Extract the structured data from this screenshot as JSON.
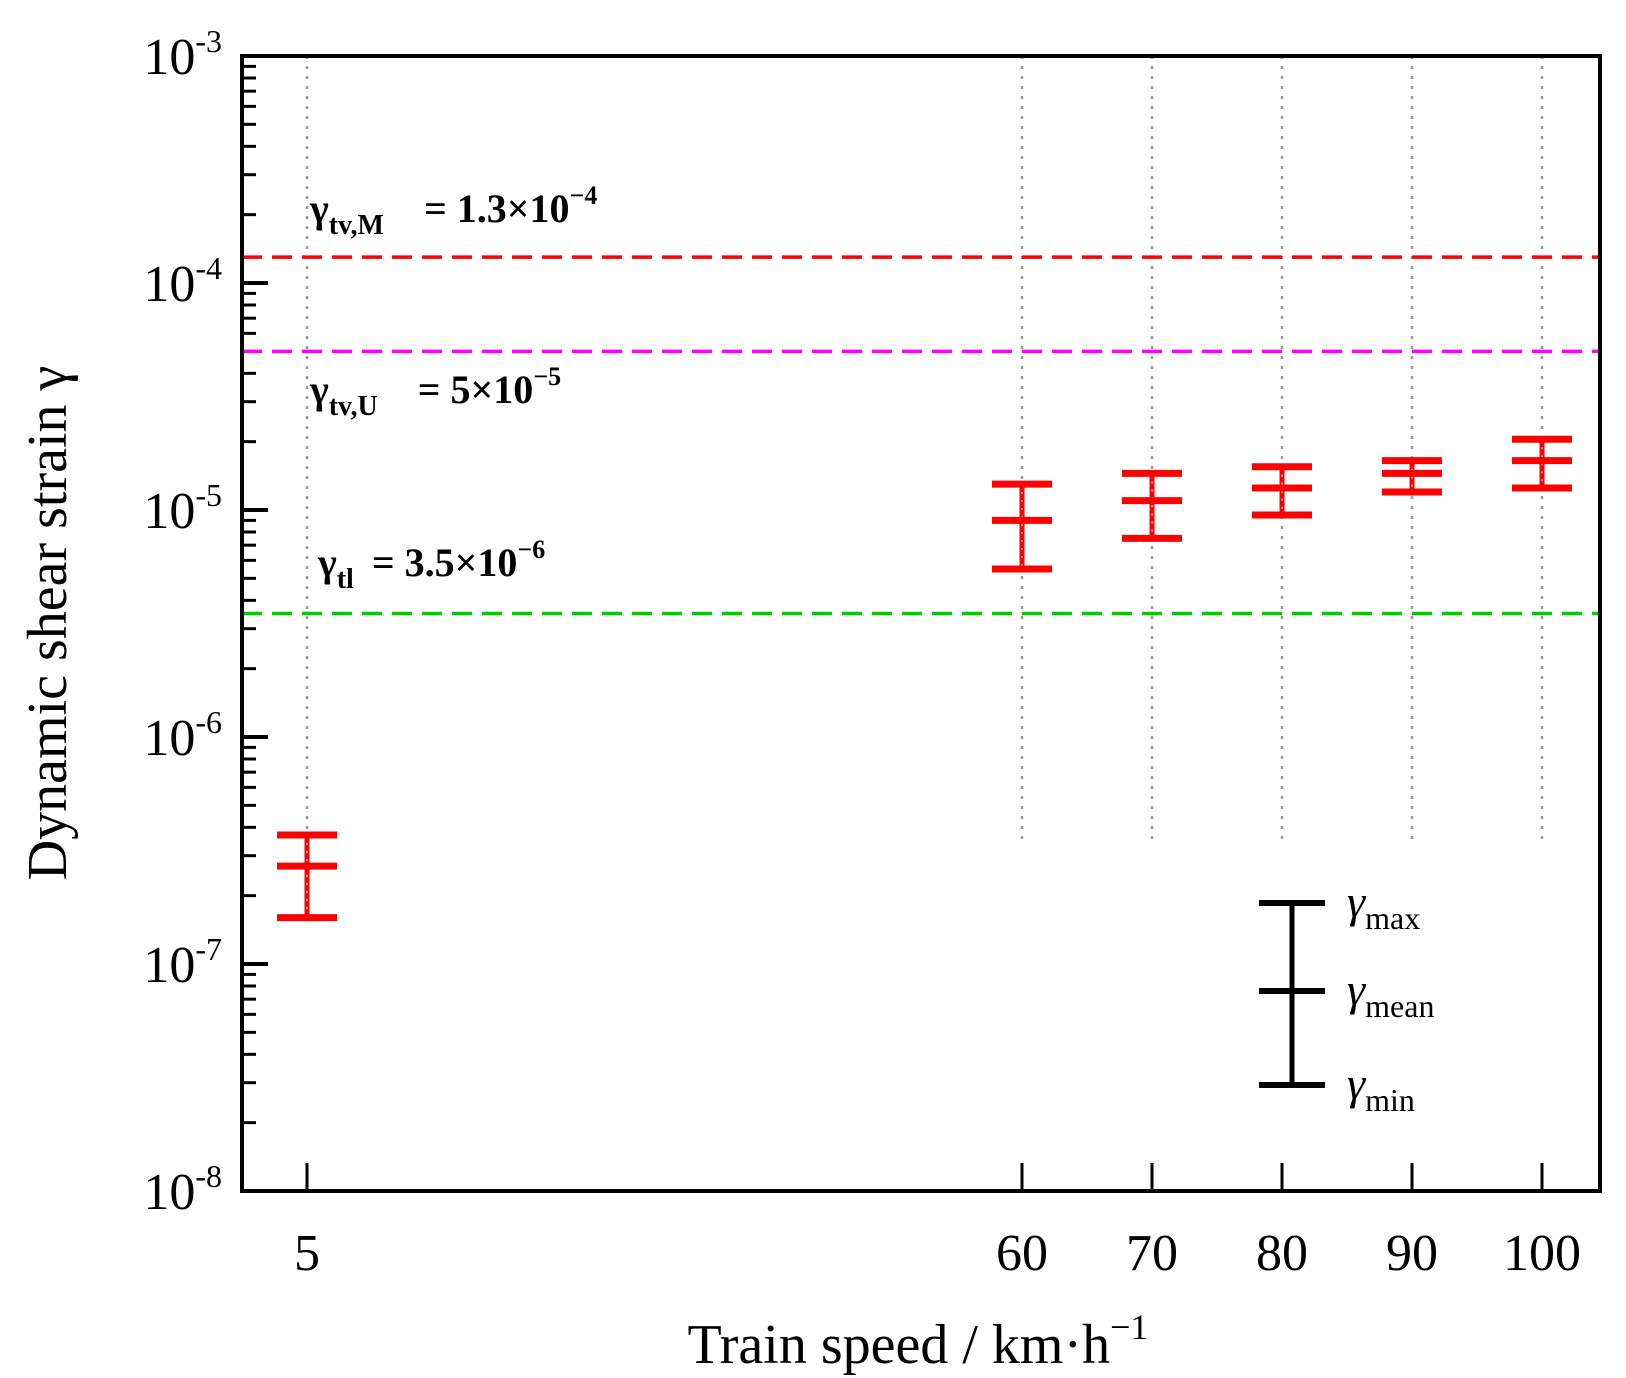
{
  "chart_data": {
    "type": "errorbar",
    "xlabel": "Train speed / km·h",
    "xlabel_sup": "−1",
    "ylabel": "Dynamic shear strain γ",
    "y_scale": "log",
    "ylim": [
      1e-08,
      0.001
    ],
    "y_ticks": [
      {
        "value": 0.001,
        "base": "10",
        "exp": "-3"
      },
      {
        "value": 0.0001,
        "base": "10",
        "exp": "-4"
      },
      {
        "value": 1e-05,
        "base": "10",
        "exp": "-5"
      },
      {
        "value": 1e-06,
        "base": "10",
        "exp": "-6"
      },
      {
        "value": 1e-07,
        "base": "10",
        "exp": "-7"
      },
      {
        "value": 1e-08,
        "base": "10",
        "exp": "-8"
      }
    ],
    "categories": [
      "5",
      "60",
      "70",
      "80",
      "90",
      "100"
    ],
    "series": [
      {
        "name": "Dynamic shear strain",
        "color": "#ff0000",
        "min": [
          1.6e-07,
          5.5e-06,
          7.5e-06,
          9.5e-06,
          1.2e-05,
          1.25e-05
        ],
        "mean": [
          2.7e-07,
          9e-06,
          1.1e-05,
          1.25e-05,
          1.45e-05,
          1.65e-05
        ],
        "max": [
          3.7e-07,
          1.3e-05,
          1.45e-05,
          1.55e-05,
          1.65e-05,
          2.05e-05
        ]
      }
    ],
    "reference_lines": [
      {
        "value": 0.00013,
        "color": "#ff0000",
        "sym": "γ",
        "sub": "tv,M",
        "text": " = 1.3×10",
        "sup": "−4"
      },
      {
        "value": 5e-05,
        "color": "#ff00ff",
        "sym": "γ",
        "sub": "tv,U",
        "text": " = 5×10",
        "sup": "−5"
      },
      {
        "value": 3.5e-06,
        "color": "#00cc00",
        "sym": "γ",
        "sub": "tl",
        "text": " = 3.5×10",
        "sup": "−6"
      }
    ],
    "legend": {
      "position": "bottom-right",
      "color": "#000000",
      "items": [
        {
          "sym": "γ",
          "sub": "max"
        },
        {
          "sym": "γ",
          "sub": "mean"
        },
        {
          "sym": "γ",
          "sub": "min"
        }
      ]
    }
  }
}
